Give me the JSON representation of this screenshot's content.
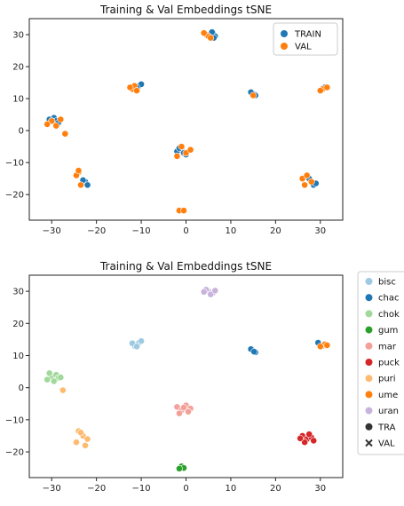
{
  "chart_data": [
    {
      "type": "scatter",
      "title": "Training & Val Embeddings tSNE",
      "xlim": [
        -35,
        35
      ],
      "ylim": [
        -28,
        35
      ],
      "xticks": [
        -30,
        -20,
        -10,
        0,
        10,
        20,
        30
      ],
      "yticks": [
        30,
        20,
        10,
        0,
        -10,
        -20
      ],
      "grid": false,
      "legend_position": "top-right",
      "series": [
        {
          "name": "TRAIN",
          "color": "#1f77b4",
          "marker": "circle",
          "x": [
            6,
            6.5,
            5.5,
            6.2,
            5.8,
            15,
            15.5,
            14.5,
            -10.5,
            -10,
            -11,
            -29.5,
            -29,
            -30.5,
            -28.5,
            -22.5,
            -22,
            -23,
            -1,
            -0.5,
            -2,
            0,
            -1.5,
            28,
            28.5,
            27.5,
            29,
            31,
            30.5
          ],
          "y": [
            30.5,
            29.5,
            30,
            29,
            30.8,
            11.5,
            11,
            12,
            14,
            14.5,
            13.5,
            4,
            3,
            3.5,
            2.5,
            -16,
            -17,
            -15.5,
            -6,
            -7,
            -6.5,
            -7.5,
            -5.5,
            -16,
            -17,
            -15,
            -16.5,
            13.5,
            13
          ]
        },
        {
          "name": "VAL",
          "color": "#ff7f0e",
          "marker": "circle",
          "x": [
            4.5,
            5,
            4,
            5.5,
            15,
            -12,
            -11.5,
            -12.5,
            -11,
            -30,
            -31,
            -29,
            -28,
            -27,
            -24,
            -24.5,
            -23.5,
            -24,
            -1,
            -2,
            0,
            1,
            -1.5,
            -0.5,
            26,
            27,
            28,
            26.5,
            30.5,
            31.5,
            30
          ],
          "y": [
            30,
            29.5,
            30.5,
            29,
            11,
            13,
            14,
            13.5,
            12.5,
            3,
            2,
            1.5,
            3.5,
            -1,
            -13,
            -14,
            -17,
            -12.5,
            -5,
            -8,
            -7,
            -6,
            -25,
            -25,
            -15,
            -14,
            -16,
            -17,
            13,
            13.5,
            12.5
          ]
        }
      ]
    },
    {
      "type": "scatter",
      "title": "Training & Val Embeddings tSNE",
      "xlim": [
        -35,
        35
      ],
      "ylim": [
        -28,
        35
      ],
      "xticks": [
        -30,
        -20,
        -10,
        0,
        10,
        20,
        30
      ],
      "yticks": [
        30,
        20,
        10,
        0,
        -10,
        -20
      ],
      "grid": false,
      "legend_position": "outside-right",
      "legend_entries": [
        {
          "label": "bisc",
          "color": "#9ecae1",
          "marker": "circle"
        },
        {
          "label": "chac",
          "color": "#1f77b4",
          "marker": "circle"
        },
        {
          "label": "chok",
          "color": "#a1d99b",
          "marker": "circle"
        },
        {
          "label": "gum",
          "color": "#2ca02c",
          "marker": "circle"
        },
        {
          "label": "mar",
          "color": "#f4a09a",
          "marker": "circle"
        },
        {
          "label": "puck",
          "color": "#d62728",
          "marker": "circle"
        },
        {
          "label": "puri",
          "color": "#fdbb72",
          "marker": "circle"
        },
        {
          "label": "ume",
          "color": "#ff7f0e",
          "marker": "circle"
        },
        {
          "label": "uran",
          "color": "#c9b3dd",
          "marker": "circle"
        },
        {
          "label": "TRA",
          "color": "#333333",
          "marker": "circle"
        },
        {
          "label": "VAL",
          "color": "#333333",
          "marker": "x"
        }
      ],
      "series": [
        {
          "color": "#9ecae1",
          "x": [
            -11,
            -10.5,
            -11.5,
            -10,
            -12,
            -11
          ],
          "y": [
            13.5,
            14,
            13,
            14.5,
            13.8,
            12.8
          ]
        },
        {
          "color": "#1f77b4",
          "x": [
            15,
            15.5,
            14.5,
            15.2,
            29.5
          ],
          "y": [
            11.5,
            11,
            12,
            11.2,
            14
          ]
        },
        {
          "color": "#a1d99b",
          "x": [
            -30,
            -29,
            -31,
            -28.5,
            -30.5,
            -29.5,
            -28
          ],
          "y": [
            3.5,
            4,
            2.5,
            3,
            4.5,
            2,
            3.2
          ]
        },
        {
          "color": "#2ca02c",
          "x": [
            -1,
            -0.5,
            -1.5
          ],
          "y": [
            -24.5,
            -25,
            -25.2
          ]
        },
        {
          "color": "#f4a09a",
          "x": [
            -2,
            -1,
            0,
            1,
            -1.5,
            -0.5,
            0.5
          ],
          "y": [
            -6,
            -7,
            -5.5,
            -6.5,
            -8,
            -6.2,
            -7.5
          ]
        },
        {
          "color": "#d62728",
          "x": [
            26,
            27,
            28,
            26.5,
            27.5,
            28.5,
            25.5
          ],
          "y": [
            -15,
            -16,
            -15.5,
            -17,
            -14.5,
            -16.5,
            -15.8
          ]
        },
        {
          "color": "#fdbb72",
          "x": [
            -24,
            -23,
            -22,
            -24.5,
            -23.5,
            -22.5,
            -27.5
          ],
          "y": [
            -13.5,
            -15,
            -16,
            -17,
            -14,
            -18,
            -0.8
          ]
        },
        {
          "color": "#ff7f0e",
          "x": [
            30.5,
            31,
            30,
            31.5
          ],
          "y": [
            13,
            13.5,
            12.8,
            13.2
          ]
        },
        {
          "color": "#c9b3dd",
          "x": [
            5,
            6,
            4.5,
            5.5,
            6.5,
            4
          ],
          "y": [
            30,
            29.5,
            30.5,
            29,
            30.2,
            29.8
          ]
        }
      ]
    }
  ]
}
